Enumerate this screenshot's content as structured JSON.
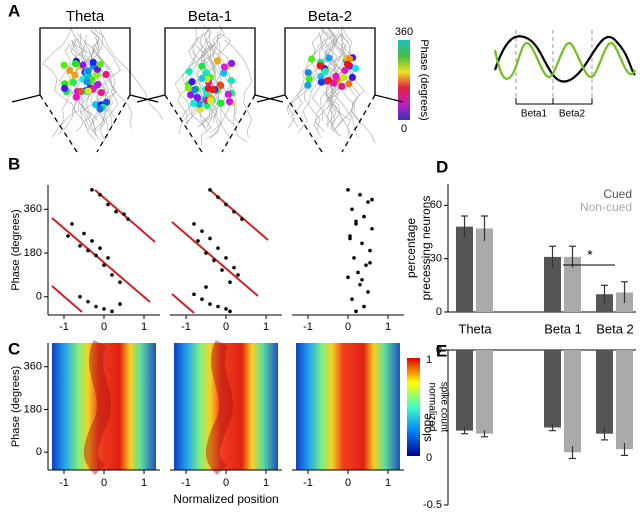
{
  "panel_labels": {
    "a": "A",
    "b": "B",
    "c": "C",
    "d": "D",
    "e": "E"
  },
  "panel_a": {
    "titles": [
      "Theta",
      "Beta-1",
      "Beta-2"
    ],
    "colorbar_label": "Phase (degrees)",
    "colorbar_ticks": [
      0,
      360
    ],
    "wave_labels": [
      "Beta1",
      "Beta2"
    ]
  },
  "panel_c": {
    "y_label": "Phase (degrees)",
    "x_label": "Normalized position",
    "xlim": [
      -1.4,
      1.4
    ],
    "ylim": [
      -75,
      460
    ],
    "xticks": [
      -1,
      0,
      1
    ],
    "yticks": [
      0,
      180,
      360
    ],
    "colorbar_label": [
      "normalized",
      "spike count"
    ],
    "colorbar_ticks": [
      0,
      1
    ]
  },
  "chart_data": [
    {
      "type": "scatter",
      "y_label": "Phase (degrees)",
      "color": "#000000",
      "x": [
        -0.3,
        -0.1,
        0.1,
        0.3,
        0.5,
        0.6,
        -0.9,
        -0.6,
        -0.4,
        -0.2,
        0,
        0.2,
        0.4,
        -0.8,
        -0.5,
        -0.3,
        -0.1,
        0.1,
        -0.6,
        -0.4,
        -0.2,
        0,
        0.2,
        0.4
      ],
      "y": [
        440,
        420,
        380,
        350,
        340,
        320,
        250,
        210,
        190,
        170,
        130,
        90,
        60,
        300,
        260,
        230,
        200,
        160,
        0,
        -20,
        -40,
        -50,
        -60,
        -30
      ],
      "xlim": [
        -1.4,
        1.4
      ],
      "ylim": [
        -75,
        460
      ],
      "xticks": [
        -1,
        0,
        1
      ],
      "yticks": [
        0,
        180,
        360
      ]
    },
    {
      "type": "scatter",
      "color": "#000000",
      "x": [
        -0.4,
        -0.2,
        0,
        0.2,
        0.4,
        -0.8,
        -0.6,
        -0.4,
        -0.2,
        0,
        0.2,
        0.3,
        -0.7,
        -0.5,
        -0.3,
        -0.1,
        0.1,
        -0.8,
        -0.6,
        -0.4,
        -0.2,
        0,
        0.1,
        -0.5
      ],
      "y": [
        440,
        410,
        380,
        350,
        320,
        300,
        270,
        240,
        200,
        160,
        120,
        90,
        230,
        180,
        150,
        110,
        60,
        10,
        -10,
        -30,
        -40,
        -50,
        -60,
        40
      ],
      "xlim": [
        -1.4,
        1.4
      ],
      "ylim": [
        -75,
        460
      ],
      "xticks": [
        -1,
        0,
        1
      ]
    },
    {
      "type": "scatter",
      "color": "#000000",
      "x": [
        0,
        0.3,
        0.5,
        0.1,
        0.4,
        0.2,
        0.6,
        0.05,
        0.35,
        0.55,
        0.15,
        0.45,
        0.25,
        0,
        0.3,
        0.5,
        0.1,
        0.4,
        0.2,
        0.6,
        0.05,
        0.35,
        0.55,
        0.2
      ],
      "y": [
        440,
        420,
        390,
        360,
        330,
        300,
        280,
        250,
        220,
        190,
        160,
        130,
        100,
        80,
        50,
        20,
        -10,
        -40,
        -60,
        400,
        240,
        70,
        140,
        310
      ],
      "xlim": [
        -1.4,
        1.4
      ],
      "ylim": [
        -75,
        460
      ],
      "xticks": [
        -1,
        0,
        1
      ]
    },
    {
      "type": "bar",
      "y_label": [
        "percentage",
        "precessing neurons"
      ],
      "categories": [
        "Theta",
        "Beta 1",
        "Beta 2"
      ],
      "series": [
        {
          "name": "Cued",
          "color": "#555555",
          "values": [
            48,
            31,
            10
          ],
          "errors": [
            6,
            6,
            5
          ]
        },
        {
          "name": "Non-cued",
          "color": "#aaaaaa",
          "values": [
            47,
            31,
            11
          ],
          "errors": [
            7,
            6,
            6
          ]
        }
      ],
      "ylim": [
        0,
        72
      ],
      "yticks": [
        0,
        30,
        60
      ],
      "annotation": "*"
    },
    {
      "type": "bar",
      "y_label": "slope",
      "series": [
        {
          "color": "#555555",
          "values": [
            -0.26,
            -0.25,
            -0.27
          ],
          "errors": [
            0.01,
            0.01,
            0.02
          ]
        },
        {
          "color": "#aaaaaa",
          "values": [
            -0.27,
            -0.33,
            -0.32
          ],
          "errors": [
            0.01,
            0.02,
            0.02
          ]
        }
      ],
      "ylim": [
        -0.5,
        0
      ],
      "yticks": [
        -0.5,
        0
      ]
    }
  ]
}
